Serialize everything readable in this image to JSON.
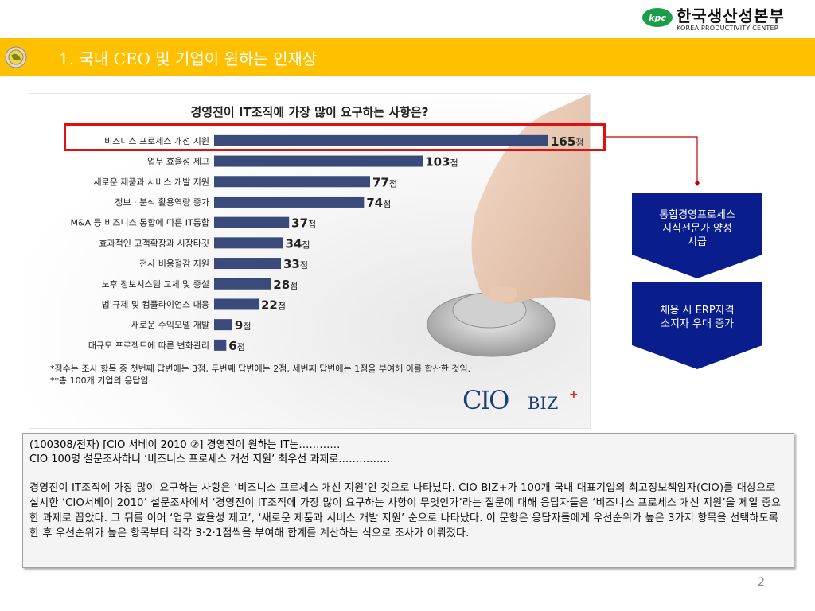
{
  "logo": {
    "name": "한국생산성본부",
    "subtitle": "KOREA PRODUCTIVITY CENTER",
    "mark_text": "kpc"
  },
  "title_bar": {
    "title": "1. 국내 CEO 및 기업이 원하는 인재상",
    "color": "#ffc000"
  },
  "chart_data": {
    "type": "bar",
    "orientation": "horizontal",
    "title": "경영진이 IT조직에 가장 많이 요구하는 사항은?",
    "unit": "점",
    "categories": [
      "비즈니스 프로세스 개선 지원",
      "업무 효율성 제고",
      "새로운 제품과 서비스 개발 지원",
      "정보 · 분석 활용역량 증가",
      "M&A 등 비즈니스 통합에 따른 IT통합",
      "효과적인 고객확장과 시장타깃",
      "전사 비용절감 지원",
      "노후 정보시스템 교체 및 증설",
      "법 규제 및 컴플라이언스 대응",
      "새로운 수익모델 개발",
      "대규모 프로젝트에 따른 변화관리"
    ],
    "values": [
      165,
      103,
      77,
      74,
      37,
      34,
      33,
      28,
      22,
      9,
      6
    ],
    "bar_color": "#3a4a7a",
    "highlight_color": "#e01010",
    "notes": [
      "*점수는 조사 항목 중 첫번째 답변에는 3점, 두번째 답변에는 2점, 세번째 답변에는 1점을 부여해 이를 합산한 것임.",
      "**총 100개 기업의 응답임."
    ],
    "grid": false,
    "legend": "none"
  },
  "brand": {
    "cio": "CIO",
    "biz": "BIZ",
    "plus": "+"
  },
  "callouts": [
    {
      "lines": [
        "통합경영프로세스",
        "지식전문가 양성",
        "시급"
      ]
    },
    {
      "lines": [
        "채용 시 ERP자격",
        "소지자 우대 증가"
      ]
    }
  ],
  "callout_color": "#0a1d8c",
  "article": {
    "head_line1": "(100308/전자) [CIO 서베이 2010 ②] 경영진이 원하는 IT는…………",
    "head_line2": "CIO 100명 설문조사하니 ‘비즈니스 프로세스 개선 지원’ 최우선 과제로……………",
    "body_underlined": "경영진이 IT조직에 가장 많이 요구하는 사항은 ‘비즈니스 프로세스 개선 지원’",
    "body_rest": "인 것으로 나타났다. CIO BIZ+가 100개 국내 대표기업의 최고정보책임자(CIO)를 대상으로 실시한 ‘CIO서베이 2010’ 설문조사에서 ‘경영진이 IT조직에 가장 많이 요구하는 사항이 무엇인가’라는 질문에 대해 응답자들은 ‘비즈니스 프로세스 개선 지원’을 제일 중요한 과제로 꼽았다. 그 뒤를 이어 ‘업무 효율성 제고’, ‘새로운 제품과 서비스 개발 지원’ 순으로 나타났다. 이 문항은 응답자들에게 우선순위가 높은 3가지 항목을 선택하도록 한 후 우선순위가 높은 항목부터 각각 3·2·1점씩을 부여해 합계를 계산하는 식으로 조사가 이뤄졌다."
  },
  "page_number": "2"
}
